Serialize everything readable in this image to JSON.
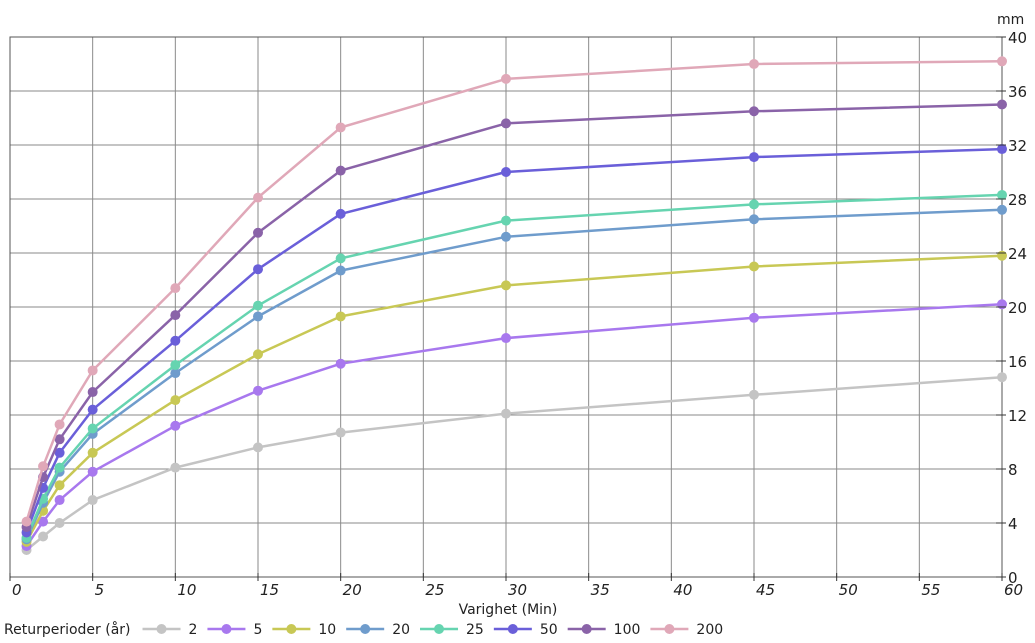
{
  "chart_data": {
    "type": "line",
    "title": "",
    "xlabel": "Varighet  (Min)",
    "ylabel": "",
    "y_unit": "mm",
    "xlim": [
      0,
      60
    ],
    "ylim": [
      0,
      40
    ],
    "x_ticks": [
      0,
      5,
      10,
      15,
      20,
      25,
      30,
      35,
      40,
      45,
      50,
      55,
      60
    ],
    "y_ticks": [
      0,
      4,
      8,
      12,
      16,
      20,
      24,
      28,
      32,
      36,
      40
    ],
    "grid": true,
    "y_axis_side": "right",
    "legend_title": "Returperioder (år)",
    "legend_position": "bottom",
    "x": [
      1,
      2,
      3,
      5,
      10,
      15,
      20,
      30,
      45,
      60
    ],
    "series": [
      {
        "name": "2",
        "color": "#c4c4c4",
        "values": [
          2.0,
          3.0,
          4.0,
          5.7,
          8.1,
          9.6,
          10.7,
          12.1,
          13.5,
          14.8
        ]
      },
      {
        "name": "5",
        "color": "#a878ee",
        "values": [
          2.3,
          4.1,
          5.7,
          7.8,
          11.2,
          13.8,
          15.8,
          17.7,
          19.2,
          20.2
        ]
      },
      {
        "name": "10",
        "color": "#c8c855",
        "values": [
          2.6,
          4.9,
          6.8,
          9.2,
          13.1,
          16.5,
          19.3,
          21.6,
          23.0,
          23.8
        ]
      },
      {
        "name": "20",
        "color": "#6f9ccc",
        "values": [
          2.8,
          5.5,
          7.8,
          10.6,
          15.1,
          19.3,
          22.7,
          25.2,
          26.5,
          27.2
        ]
      },
      {
        "name": "25",
        "color": "#66d4b0",
        "values": [
          2.9,
          5.8,
          8.1,
          11.0,
          15.7,
          20.1,
          23.6,
          26.4,
          27.6,
          28.3
        ]
      },
      {
        "name": "50",
        "color": "#6a5fd9",
        "values": [
          3.3,
          6.6,
          9.2,
          12.4,
          17.5,
          22.8,
          26.9,
          30.0,
          31.1,
          31.7
        ]
      },
      {
        "name": "100",
        "color": "#8a63a8",
        "values": [
          3.7,
          7.4,
          10.2,
          13.7,
          19.4,
          25.5,
          30.1,
          33.6,
          34.5,
          35.0
        ]
      },
      {
        "name": "200",
        "color": "#e0a8b8",
        "values": [
          4.1,
          8.2,
          11.3,
          15.3,
          21.4,
          28.1,
          33.3,
          36.9,
          38.0,
          38.2
        ]
      }
    ]
  }
}
